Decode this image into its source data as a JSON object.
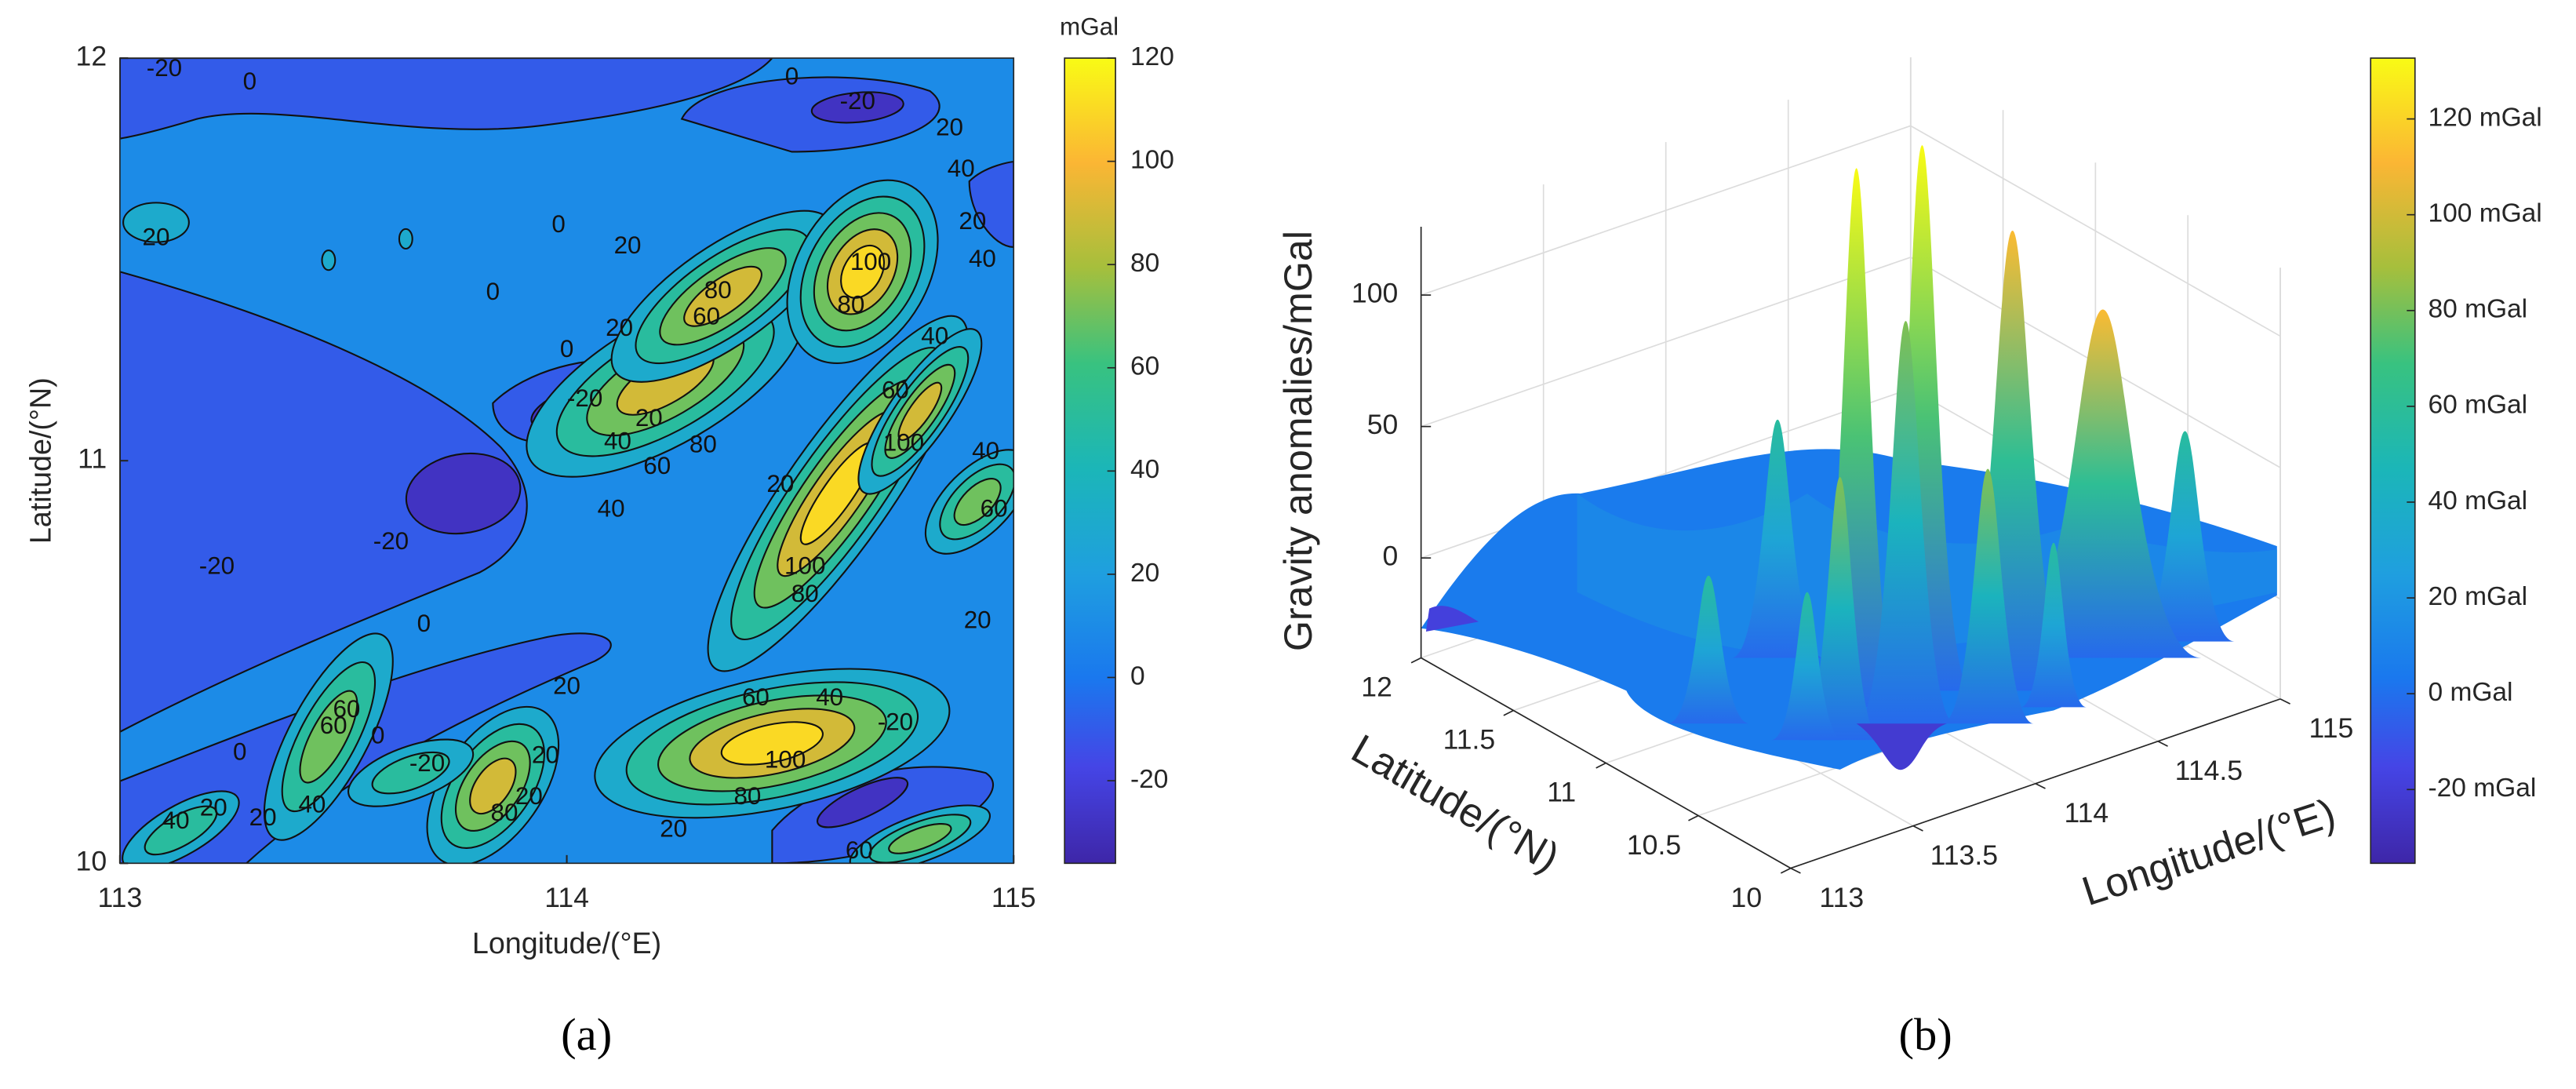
{
  "chart_data": [
    {
      "type": "contour",
      "caption": "(a)",
      "xlabel": "Longitude/(°E)",
      "ylabel": "Latitude/(°N)",
      "xlim": [
        113,
        115
      ],
      "xticks": [
        113,
        114,
        115
      ],
      "ylim": [
        10,
        12
      ],
      "yticks": [
        10,
        11,
        12
      ],
      "contour_levels": [
        -20,
        0,
        20,
        40,
        60,
        80,
        100
      ],
      "colormap": "parula",
      "colorbar": {
        "label": "mGal",
        "lim": [
          -36,
          120
        ],
        "ticks": [
          -20,
          0,
          20,
          40,
          60,
          80,
          100,
          120
        ]
      }
    },
    {
      "type": "surface",
      "caption": "(b)",
      "xlabel": "Longitude/(°E)",
      "ylabel": "Latitude/(°N)",
      "zlabel": "Gravity anomalies/mGal",
      "xlim": [
        113,
        115
      ],
      "xticks": [
        113,
        113.5,
        114,
        114.5,
        115
      ],
      "ylim": [
        10,
        12
      ],
      "yticks": [
        10,
        10.5,
        11,
        11.5,
        12
      ],
      "zlim": [
        -38,
        126
      ],
      "zticks": [
        0,
        50,
        100
      ],
      "grid": true,
      "colormap": "parula",
      "colorbar": {
        "lim": [
          -35.4,
          132.7
        ],
        "ticks": [
          {
            "value": -20,
            "label": "-20 mGal"
          },
          {
            "value": 0,
            "label": "0 mGal"
          },
          {
            "value": 20,
            "label": "20 mGal"
          },
          {
            "value": 40,
            "label": "40 mGal"
          },
          {
            "value": 60,
            "label": "60 mGal"
          },
          {
            "value": 80,
            "label": "80 mGal"
          },
          {
            "value": 100,
            "label": "100 mGal"
          },
          {
            "value": 120,
            "label": "120 mGal"
          }
        ]
      }
    }
  ]
}
